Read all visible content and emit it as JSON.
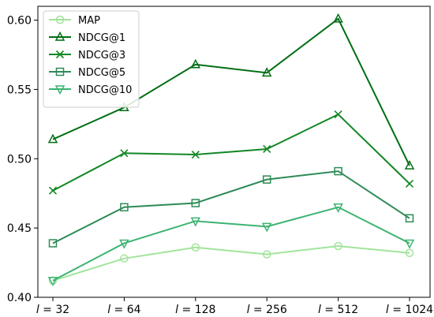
{
  "chart_data": {
    "type": "line",
    "title": "",
    "xlabel": "",
    "ylabel": "",
    "categories": [
      "l = 32",
      "l = 64",
      "l = 128",
      "l = 256",
      "l = 512",
      "l = 1024"
    ],
    "category_parts": [
      {
        "var": "l",
        "eq": " = 32"
      },
      {
        "var": "l",
        "eq": " = 64"
      },
      {
        "var": "l",
        "eq": " = 128"
      },
      {
        "var": "l",
        "eq": " = 256"
      },
      {
        "var": "l",
        "eq": " = 512"
      },
      {
        "var": "l",
        "eq": " = 1024"
      }
    ],
    "ylim": [
      0.4,
      0.61
    ],
    "yticks": [
      "0.40",
      "0.45",
      "0.50",
      "0.55",
      "0.60"
    ],
    "grid": false,
    "legend_position": "top-left",
    "series": [
      {
        "name": "MAP",
        "marker": "circle",
        "color": "#a1e49a",
        "values": [
          0.412,
          0.428,
          0.436,
          0.431,
          0.437,
          0.432
        ]
      },
      {
        "name": "NDCG@1",
        "marker": "triangle-up",
        "color": "#006e14",
        "values": [
          0.514,
          0.537,
          0.568,
          0.562,
          0.601,
          0.495
        ]
      },
      {
        "name": "NDCG@3",
        "marker": "x",
        "color": "#128724",
        "values": [
          0.477,
          0.504,
          0.503,
          0.507,
          0.532,
          0.482
        ]
      },
      {
        "name": "NDCG@5",
        "marker": "square",
        "color": "#2e8a57",
        "values": [
          0.439,
          0.465,
          0.468,
          0.485,
          0.491,
          0.457
        ]
      },
      {
        "name": "NDCG@10",
        "marker": "triangle-down",
        "color": "#3cb371",
        "values": [
          0.412,
          0.439,
          0.455,
          0.451,
          0.465,
          0.439
        ]
      }
    ]
  }
}
